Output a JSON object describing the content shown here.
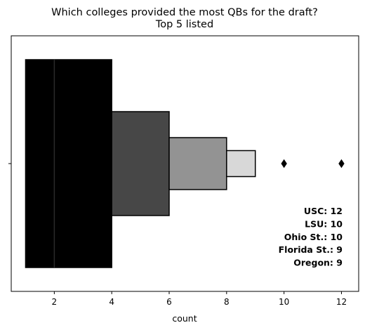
{
  "chart_data": {
    "type": "boxenplot",
    "title": "Which colleges provided the most QBs for the draft?",
    "subtitle": "Top 5 listed",
    "xlabel": "count",
    "ylabel": "",
    "xlim": [
      0.5,
      12.6
    ],
    "xticks": [
      2,
      4,
      6,
      8,
      10,
      12
    ],
    "grid": false,
    "median": 2,
    "boxes": [
      {
        "lo": 1,
        "hi": 4,
        "color": "#000000"
      },
      {
        "lo": 4,
        "hi": 6,
        "color": "#474747"
      },
      {
        "lo": 6,
        "hi": 8,
        "color": "#939393"
      },
      {
        "lo": 8,
        "hi": 9,
        "color": "#d8d8d8"
      }
    ],
    "outliers": [
      10,
      12
    ],
    "annotations": [
      "USC: 12",
      "LSU: 10",
      "Ohio St.: 10",
      "Florida St.: 9",
      "Oregon: 9"
    ]
  }
}
